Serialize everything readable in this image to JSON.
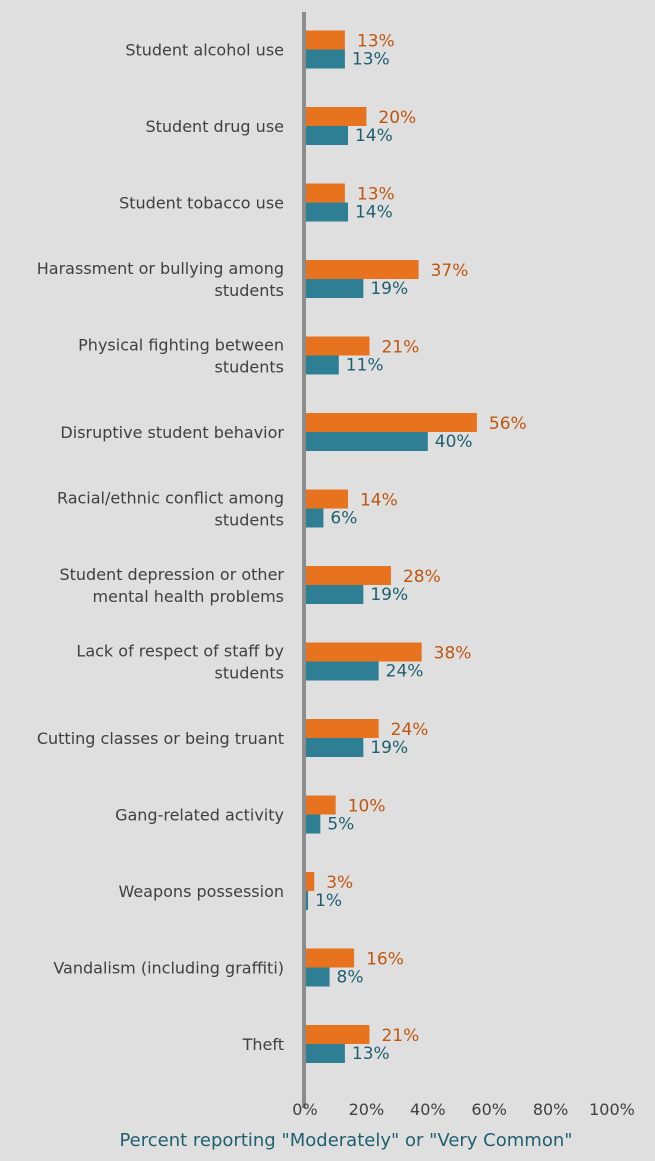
{
  "chart_data": {
    "type": "bar",
    "orientation": "horizontal",
    "categories": [
      "Student alcohol use",
      "Student drug use",
      "Student tobacco use",
      "Harassment or bullying among students",
      "Physical fighting between students",
      "Disruptive student behavior",
      "Racial/ethnic conflict among students",
      "Student depression or other mental health problems",
      "Lack of respect of staff by students",
      "Cutting classes or being truant",
      "Gang-related activity",
      "Weapons possession",
      "Vandalism (including graffiti)",
      "Theft"
    ],
    "category_lines": [
      [
        "Student alcohol use"
      ],
      [
        "Student drug use"
      ],
      [
        "Student tobacco use"
      ],
      [
        "Harassment or bullying among",
        "students"
      ],
      [
        "Physical fighting between",
        "students"
      ],
      [
        "Disruptive student behavior"
      ],
      [
        "Racial/ethnic conflict among",
        "students"
      ],
      [
        "Student depression or other",
        "mental health problems"
      ],
      [
        "Lack of respect of staff by",
        "students"
      ],
      [
        "Cutting classes or being truant"
      ],
      [
        "Gang-related activity"
      ],
      [
        "Weapons possession"
      ],
      [
        "Vandalism (including graffiti)"
      ],
      [
        "Theft"
      ]
    ],
    "series": [
      {
        "color": "#e8731e",
        "label_color": "#c0560f",
        "values": [
          13,
          20,
          13,
          37,
          21,
          56,
          14,
          28,
          38,
          24,
          10,
          3,
          16,
          21
        ]
      },
      {
        "color": "#2e7f93",
        "label_color": "#1f5f70",
        "values": [
          13,
          14,
          14,
          19,
          11,
          40,
          6,
          19,
          24,
          19,
          5,
          1,
          8,
          13
        ]
      }
    ],
    "value_suffix": "%",
    "xlim": [
      0,
      100
    ],
    "xticks": [
      "0%",
      "20%",
      "40%",
      "60%",
      "80%",
      "100%"
    ],
    "xlabel": "Percent reporting \"Moderately\" or \"Very Common\"",
    "xlabel_color": "#1f5f70",
    "grid": false,
    "legend": "none"
  }
}
